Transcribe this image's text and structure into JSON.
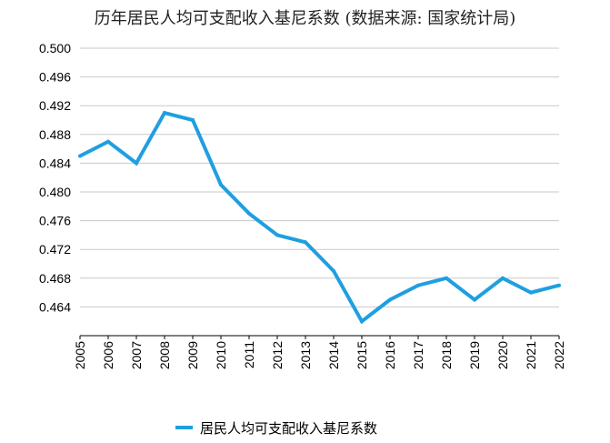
{
  "title": "历年居民人均可支配收入基尼系数 (数据来源: 国家统计局)",
  "chart_data": {
    "type": "line",
    "title": "历年居民人均可支配收入基尼系数 (数据来源: 国家统计局)",
    "xlabel": "",
    "ylabel": "",
    "x": [
      "2005",
      "2006",
      "2007",
      "2008",
      "2009",
      "2010",
      "2011",
      "2012",
      "2013",
      "2014",
      "2015",
      "2016",
      "2017",
      "2018",
      "2019",
      "2020",
      "2021",
      "2022"
    ],
    "series": [
      {
        "name": "居民人均可支配收入基尼系数",
        "color": "#1f9fe0",
        "values": [
          0.485,
          0.487,
          0.484,
          0.491,
          0.49,
          0.481,
          0.477,
          0.474,
          0.473,
          0.469,
          0.462,
          0.465,
          0.467,
          0.468,
          0.465,
          0.468,
          0.466,
          0.467
        ]
      }
    ],
    "ylim": [
      0.46,
      0.5
    ],
    "yticks": [
      "0.464",
      "0.468",
      "0.472",
      "0.476",
      "0.480",
      "0.484",
      "0.488",
      "0.492",
      "0.496",
      "0.500"
    ],
    "grid": true,
    "legend": "bottom"
  }
}
